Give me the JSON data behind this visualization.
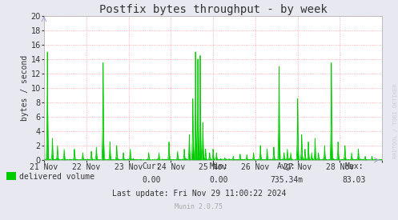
{
  "title": "Postfix bytes throughput - by week",
  "ylabel": "bytes / second",
  "ylim": [
    0,
    20
  ],
  "yticks": [
    0,
    2,
    4,
    6,
    8,
    10,
    12,
    14,
    16,
    18,
    20
  ],
  "bg_color": "#e8e8f0",
  "plot_bg_color": "#ffffff",
  "grid_color": "#ff9999",
  "line_color": "#00cc00",
  "fill_color": "#00cc00",
  "legend_label": "delivered volume",
  "legend_color": "#00cc00",
  "cur_label": "Cur:",
  "cur_val": "0.00",
  "min_label": "Min:",
  "min_val": "0.00",
  "avg_label": "Avg:",
  "avg_val": "735.34m",
  "max_label": "Max:",
  "max_val": "83.03",
  "last_update": "Last update: Fri Nov 29 11:00:22 2024",
  "munin_version": "Munin 2.0.75",
  "watermark": "RRDTOOL / TOBI OETIKER",
  "x_tick_labels": [
    "21 Nov",
    "22 Nov",
    "23 Nov",
    "24 Nov",
    "25 Nov",
    "26 Nov",
    "27 Nov",
    "28 Nov"
  ],
  "title_fontsize": 10,
  "axis_fontsize": 7,
  "footer_fontsize": 7,
  "watermark_fontsize": 5
}
